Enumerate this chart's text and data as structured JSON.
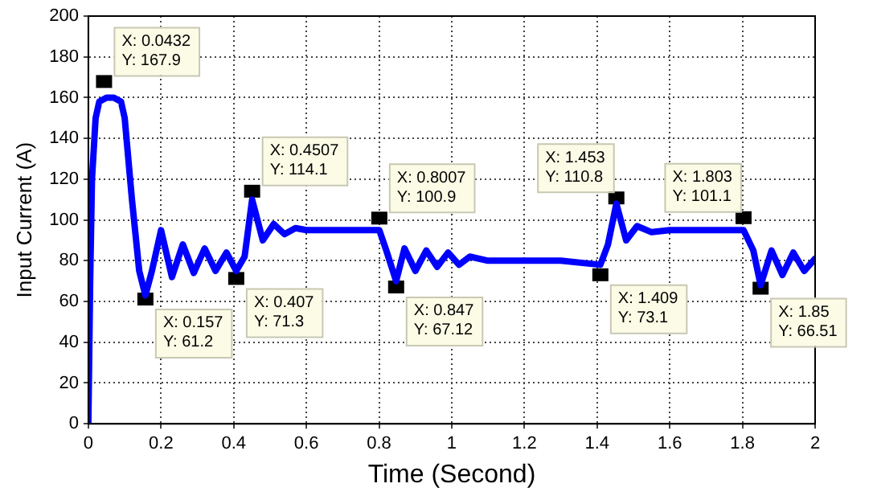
{
  "chart_data": {
    "type": "line",
    "xlabel": "Time (Second)",
    "ylabel": "Input Current (A)",
    "x": [
      0,
      0.005,
      0.01,
      0.02,
      0.03,
      0.05,
      0.07,
      0.09,
      0.1,
      0.12,
      0.14,
      0.157,
      0.175,
      0.2,
      0.23,
      0.26,
      0.29,
      0.32,
      0.35,
      0.38,
      0.407,
      0.43,
      0.4507,
      0.48,
      0.51,
      0.54,
      0.57,
      0.6,
      0.7,
      0.8007,
      0.82,
      0.847,
      0.87,
      0.9,
      0.93,
      0.96,
      0.99,
      1.02,
      1.05,
      1.1,
      1.2,
      1.3,
      1.409,
      1.43,
      1.453,
      1.48,
      1.51,
      1.55,
      1.6,
      1.7,
      1.803,
      1.83,
      1.85,
      1.88,
      1.91,
      1.94,
      1.97,
      2
    ],
    "series": [
      {
        "color": "#0000ff",
        "values": [
          0,
          70,
          120,
          150,
          158,
          160,
          160,
          158,
          150,
          110,
          75,
          63,
          75,
          95,
          72,
          88,
          74,
          86,
          75,
          84,
          75,
          82,
          110,
          90,
          98,
          93,
          96,
          95,
          95,
          95,
          85,
          70,
          86,
          75,
          85,
          77,
          84,
          78,
          82,
          80,
          80,
          80,
          78,
          88,
          108,
          90,
          97,
          94,
          95,
          95,
          95,
          85,
          68,
          85,
          73,
          84,
          75,
          81
        ]
      }
    ],
    "xlim": [
      0,
      2
    ],
    "xticks": [
      0,
      0.2,
      0.4,
      0.6,
      0.8,
      1,
      1.2,
      1.4,
      1.6,
      1.8,
      2
    ],
    "ylim": [
      0,
      200
    ],
    "yticks": [
      0,
      20,
      40,
      60,
      80,
      100,
      120,
      140,
      160,
      180,
      200
    ],
    "grid": true,
    "legend": false,
    "marker": "none",
    "line_style": "solid",
    "annotations": [
      {
        "text": "X: 0.0432\nY: 167.9",
        "x": 0.0432,
        "y": 167.9
      },
      {
        "text": "X: 0.157\nY: 61.2",
        "x": 0.157,
        "y": 61.2
      },
      {
        "text": "X: 0.407\nY: 71.3",
        "x": 0.407,
        "y": 71.3
      },
      {
        "text": "X: 0.4507\nY: 114.1",
        "x": 0.4507,
        "y": 114.1
      },
      {
        "text": "X: 0.8007\nY: 100.9",
        "x": 0.8007,
        "y": 100.9
      },
      {
        "text": "X: 0.847\nY: 67.12",
        "x": 0.847,
        "y": 67.12
      },
      {
        "text": "X: 1.453\nY: 110.8",
        "x": 1.453,
        "y": 110.8
      },
      {
        "text": "X: 1.409\nY: 73.1",
        "x": 1.409,
        "y": 73.1
      },
      {
        "text": "X: 1.803\nY: 101.1",
        "x": 1.803,
        "y": 101.1
      },
      {
        "text": "X: 1.85\nY: 66.51",
        "x": 1.85,
        "y": 66.51
      }
    ]
  }
}
